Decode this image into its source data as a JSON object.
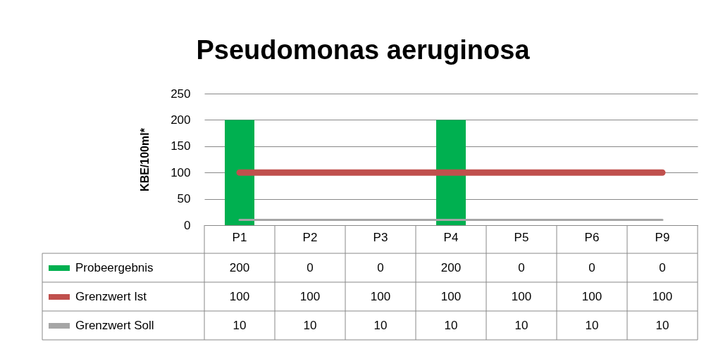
{
  "chart_data": {
    "type": "bar",
    "title": "Pseudomonas aeruginosa",
    "ylabel": "KBE/100ml*",
    "categories": [
      "P1",
      "P2",
      "P3",
      "P4",
      "P5",
      "P6",
      "P9"
    ],
    "series": [
      {
        "name": "Probeergebnis",
        "color": "#00b050",
        "values": [
          200,
          0,
          0,
          200,
          0,
          0,
          0
        ]
      },
      {
        "name": "Grenzwert Ist",
        "type": "line",
        "color": "#c0504d",
        "values": [
          100,
          100,
          100,
          100,
          100,
          100,
          100
        ]
      },
      {
        "name": "Grenzwert Soll",
        "type": "line",
        "color": "#a6a6a6",
        "values": [
          10,
          10,
          10,
          10,
          10,
          10,
          10
        ]
      }
    ],
    "ylim": [
      0,
      250
    ],
    "yticks": [
      0,
      50,
      100,
      150,
      200,
      250
    ],
    "grid": "y",
    "data_labels": true,
    "legend": "bottom left"
  }
}
